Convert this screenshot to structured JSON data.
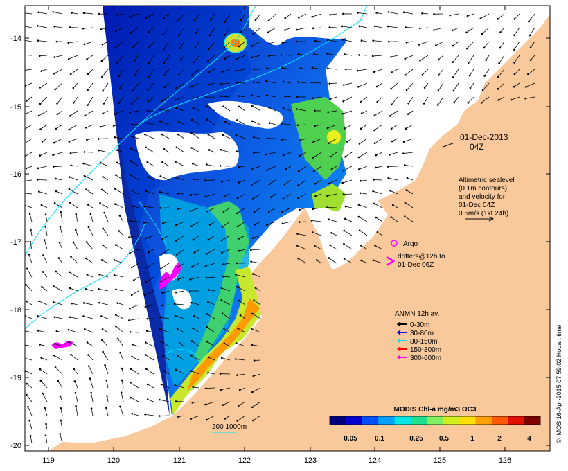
{
  "date_label": "01-Dec-2013",
  "time_label": "04Z",
  "altimetry_lines": [
    "Altimetric sealevel",
    "(0.1m contours)",
    "and velocity for",
    "01-Dec 04Z",
    "0.5m/s (1kt 24h)"
  ],
  "argo_label": "Argo",
  "drifters_lines": [
    "drifters@12h to",
    "01-Dec 06Z"
  ],
  "anmn": {
    "title": "ANMN 12h av.",
    "items": [
      {
        "label": "0-30m",
        "color": "#000000"
      },
      {
        "label": "30-80m",
        "color": "#0000ff"
      },
      {
        "label": "80-150m",
        "color": "#00e5e5"
      },
      {
        "label": "150-300m",
        "color": "#ff0000"
      },
      {
        "label": "300-600m",
        "color": "#ff00ff"
      }
    ]
  },
  "colorbar": {
    "title": "MODIS Chl-a mg/m3 OC3",
    "labels": [
      "0.05",
      "0.1",
      "0.25",
      "0.5",
      "1",
      "2",
      "4"
    ],
    "colors": [
      "#00007f",
      "#0000d0",
      "#0050ff",
      "#00a0ff",
      "#00e5e5",
      "#20e090",
      "#7ff060",
      "#d0f020",
      "#ffe000",
      "#ffa000",
      "#ff5a00",
      "#e01000",
      "#7f0000"
    ]
  },
  "bathymetry_label": "200  1000m",
  "credit": "© IMOS 16-Apr-2015 07:59:02 Hobart time",
  "axes": {
    "x_ticks": [
      "119",
      "120",
      "121",
      "122",
      "123",
      "124",
      "125",
      "126"
    ],
    "y_ticks": [
      "-14",
      "-15",
      "-16",
      "-17",
      "-18",
      "-19",
      "-20"
    ]
  },
  "colors": {
    "land": "#f9c99b",
    "contour": "#00e5ff",
    "argo": "#ff00ff"
  }
}
